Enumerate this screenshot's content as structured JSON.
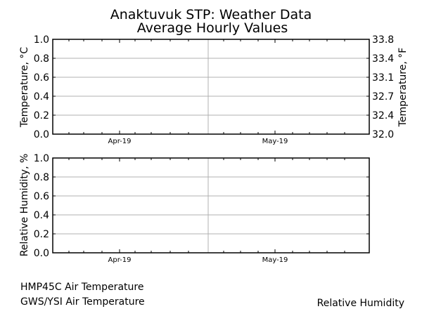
{
  "title_line1": "Anaktuvuk STP: Weather Data",
  "title_line2": "Average Hourly Values",
  "chart_data": [
    {
      "type": "line",
      "ylabel": "Temperature, °C",
      "ylabel_right": "Temperature, °F",
      "ylim": [
        0.0,
        1.0
      ],
      "yticks": [
        "0.0",
        "0.2",
        "0.4",
        "0.6",
        "0.8",
        "1.0"
      ],
      "yticks_right": [
        "32.0",
        "32.4",
        "32.7",
        "33.1",
        "33.4",
        "33.8"
      ],
      "xticks": [
        "Apr-19",
        "May-19"
      ],
      "grid": true,
      "series": [
        {
          "name": "HMP45C Air Temperature",
          "values": []
        },
        {
          "name": "GWS/YSI Air Temperature",
          "values": []
        }
      ]
    },
    {
      "type": "line",
      "ylabel": "Relative Humidity, %",
      "ylim": [
        0.0,
        1.0
      ],
      "yticks": [
        "0.0",
        "0.2",
        "0.4",
        "0.6",
        "0.8",
        "1.0"
      ],
      "xticks": [
        "Apr-19",
        "May-19"
      ],
      "grid": true,
      "series": [
        {
          "name": "Relative Humidity",
          "values": []
        }
      ]
    }
  ],
  "legend": {
    "item1": "HMP45C Air Temperature",
    "item2": "GWS/YSI Air Temperature",
    "item3": "Relative Humidity"
  }
}
